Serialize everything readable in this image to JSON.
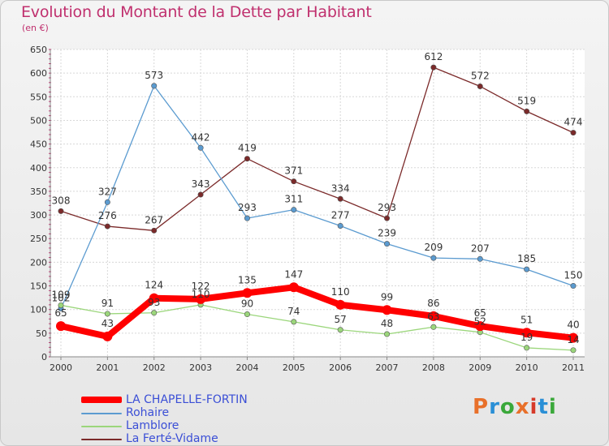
{
  "header": {
    "title": "Evolution du Montant de la Dette par Habitant",
    "subtitle": "(en €)"
  },
  "logo": {
    "text": "Proxiti",
    "colors": [
      "#e8702a",
      "#2a8fd6",
      "#3aa83a",
      "#e8702a",
      "#d63a2a",
      "#2a8fd6",
      "#3aa83a"
    ]
  },
  "chart_data": {
    "type": "line",
    "categories": [
      "2000",
      "2001",
      "2002",
      "2003",
      "2004",
      "2005",
      "2006",
      "2007",
      "2008",
      "2009",
      "2010",
      "2011"
    ],
    "ylim": [
      0,
      650
    ],
    "yticks": [
      0,
      50,
      100,
      150,
      200,
      250,
      300,
      350,
      400,
      450,
      500,
      550,
      600,
      650
    ],
    "grid": true,
    "legend_position": "bottom-left",
    "series": [
      {
        "name": "La Ferté-Vidame",
        "color": "#7b2a2a",
        "values": [
          308,
          276,
          267,
          343,
          419,
          371,
          334,
          293,
          612,
          572,
          519,
          474
        ],
        "labels": [
          "308",
          "276",
          "267",
          "343",
          "419",
          "371",
          "334",
          "293",
          "612",
          "572",
          "519",
          "474"
        ]
      },
      {
        "name": "Rohaire",
        "color": "#5b9bd0",
        "values": [
          102,
          327,
          573,
          442,
          293,
          311,
          277,
          239,
          209,
          207,
          185,
          150
        ],
        "labels": [
          "102",
          "327",
          "573",
          "442",
          "293",
          "311",
          "277",
          "239",
          "209",
          "207",
          "185",
          "150"
        ]
      },
      {
        "name": "Lamblore",
        "color": "#9bd67b",
        "values": [
          109,
          91,
          93,
          110,
          90,
          74,
          57,
          48,
          63,
          52,
          19,
          14
        ],
        "labels": [
          "109",
          "91",
          "93",
          "110",
          "90",
          "74",
          "57",
          "48",
          "63",
          "52",
          "19",
          "14"
        ]
      },
      {
        "name": "LA CHAPELLE-FORTIN",
        "color": "#ff0000",
        "values": [
          65,
          43,
          124,
          122,
          135,
          147,
          110,
          99,
          86,
          65,
          51,
          40
        ],
        "labels": [
          "65",
          "43",
          "124",
          "122",
          "135",
          "147",
          "110",
          "99",
          "86",
          "65",
          "51",
          "40"
        ]
      }
    ],
    "legend": [
      "LA CHAPELLE-FORTIN",
      "Rohaire",
      "Lamblore",
      "La Ferté-Vidame"
    ]
  }
}
